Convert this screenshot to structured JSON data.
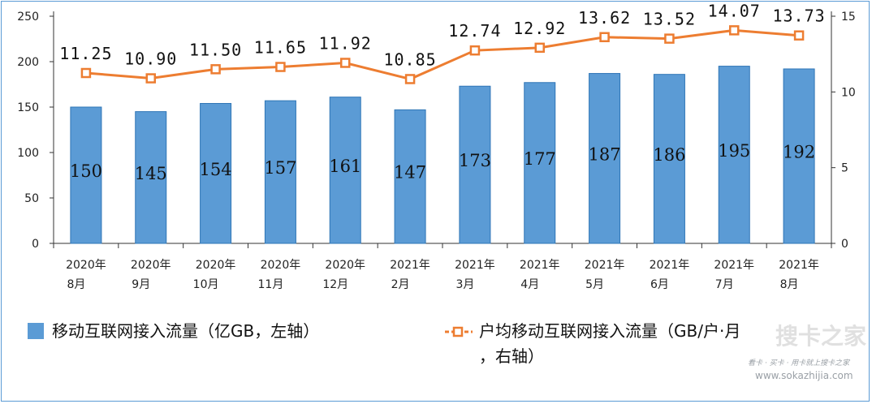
{
  "chart_data": {
    "type": "bar",
    "categories": [
      [
        "2020年",
        "8月"
      ],
      [
        "2020年",
        "9月"
      ],
      [
        "2020年",
        "10月"
      ],
      [
        "2020年",
        "11月"
      ],
      [
        "2020年",
        "12月"
      ],
      [
        "2021年",
        "2月"
      ],
      [
        "2021年",
        "3月"
      ],
      [
        "2021年",
        "4月"
      ],
      [
        "2021年",
        "5月"
      ],
      [
        "2021年",
        "6月"
      ],
      [
        "2021年",
        "7月"
      ],
      [
        "2021年",
        "8月"
      ]
    ],
    "series": [
      {
        "name": "移动互联网接入流量（亿GB，左轴）",
        "type": "bar",
        "axis": "left",
        "color": "#5b9bd5",
        "values": [
          150,
          145,
          154,
          157,
          161,
          147,
          173,
          177,
          187,
          186,
          195,
          192
        ],
        "labels": [
          "150",
          "145",
          "154",
          "157",
          "161",
          "147",
          "173",
          "177",
          "187",
          "186",
          "195",
          "192"
        ]
      },
      {
        "name": "户均移动互联网接入流量（GB/户·月，右轴）",
        "type": "line",
        "axis": "right",
        "color": "#ed7d31",
        "values": [
          11.25,
          10.9,
          11.5,
          11.65,
          11.92,
          10.85,
          12.74,
          12.92,
          13.62,
          13.52,
          14.07,
          13.73
        ],
        "labels": [
          "11.25",
          "10.90",
          "11.50",
          "11.65",
          "11.92",
          "10.85",
          "12.74",
          "12.92",
          "13.62",
          "13.52",
          "14.07",
          "13.73"
        ]
      }
    ],
    "y_left": {
      "ylim": [
        0,
        250
      ],
      "ticks": [
        "0",
        "50",
        "100",
        "150",
        "200",
        "250"
      ]
    },
    "y_right": {
      "ylim": [
        0,
        15
      ],
      "ticks": [
        "0",
        "5",
        "10",
        "15"
      ]
    },
    "grid": false,
    "legend": "bottom",
    "legend_items": [
      {
        "label": "移动互联网接入流量（亿GB，左轴）"
      },
      {
        "label_line1": "户均移动互联网接入流量（GB/户·月",
        "label_line2": "，右轴）"
      }
    ]
  },
  "watermark": {
    "brand": "搜卡之家",
    "tagline": "看卡 · 买卡 · 用卡就上搜卡之家",
    "url": "www.sokazhijia.com"
  }
}
